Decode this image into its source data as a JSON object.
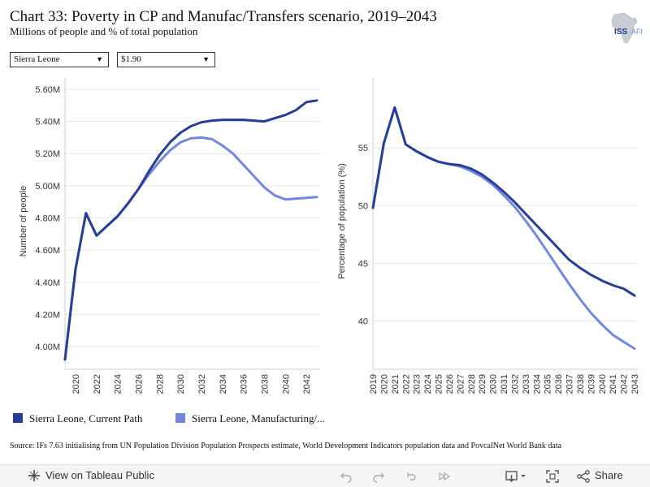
{
  "header": {
    "title": "Chart 33: Poverty in CP and Manufac/Transfers scenario, 2019–2043",
    "subtitle": "Millions of people and % of total population"
  },
  "logo": {
    "text_left": "ISS",
    "text_right": "AFI",
    "icon": "africa-map-icon"
  },
  "filters": {
    "country": {
      "value": "Sierra Leone"
    },
    "threshold": {
      "value": "$1.90"
    }
  },
  "colors": {
    "current_path": "#273d96",
    "manufacturing": "#7388dd",
    "grid": "#e4e4e4"
  },
  "legend": [
    {
      "label": "Sierra Leone, Current Path",
      "color": "#273d96"
    },
    {
      "label": "Sierra Leone, Manufacturing/...",
      "color": "#7388dd"
    }
  ],
  "source": "Source: IFs 7.63 initialising from UN Population Division Population Prospects estimate, World Development Indicators population data and PovcalNet World Bank data",
  "toolbar": {
    "view_label": "View on Tableau Public",
    "share_label": "Share",
    "icons": [
      "tableau-icon",
      "undo-icon",
      "redo-icon",
      "revert-icon",
      "forward-icon",
      "download-icon",
      "fullscreen-icon",
      "share-icon"
    ]
  },
  "chart_data": [
    {
      "type": "line",
      "title": "",
      "xlabel": "",
      "ylabel": "Number of people",
      "x": [
        2019,
        2020,
        2021,
        2022,
        2023,
        2024,
        2025,
        2026,
        2027,
        2028,
        2029,
        2030,
        2031,
        2032,
        2033,
        2034,
        2035,
        2036,
        2037,
        2038,
        2039,
        2040,
        2041,
        2042,
        2043
      ],
      "xticks": [
        "2020",
        "2022",
        "2024",
        "2026",
        "2028",
        "2030",
        "2032",
        "2034",
        "2036",
        "2038",
        "2040",
        "2042"
      ],
      "yticks": [
        "4.00M",
        "4.20M",
        "4.40M",
        "4.60M",
        "4.80M",
        "5.00M",
        "5.20M",
        "5.40M",
        "5.60M"
      ],
      "ylim": [
        3.93,
        5.63
      ],
      "grid": true,
      "series": [
        {
          "name": "Sierra Leone, Current Path",
          "values": [
            3.92,
            4.48,
            4.83,
            4.69,
            4.75,
            4.81,
            4.89,
            4.98,
            5.09,
            5.19,
            5.27,
            5.33,
            5.37,
            5.395,
            5.405,
            5.41,
            5.41,
            5.41,
            5.405,
            5.4,
            5.42,
            5.44,
            5.47,
            5.52,
            5.53
          ]
        },
        {
          "name": "Sierra Leone, Manufacturing/...",
          "values": [
            3.92,
            4.48,
            4.83,
            4.69,
            4.75,
            4.81,
            4.89,
            4.98,
            5.07,
            5.15,
            5.22,
            5.27,
            5.295,
            5.3,
            5.29,
            5.25,
            5.2,
            5.13,
            5.06,
            4.99,
            4.94,
            4.915,
            4.92,
            4.925,
            4.93
          ]
        }
      ]
    },
    {
      "type": "line",
      "title": "",
      "xlabel": "",
      "ylabel": "Percentage of population (%)",
      "x": [
        2019,
        2020,
        2021,
        2022,
        2023,
        2024,
        2025,
        2026,
        2027,
        2028,
        2029,
        2030,
        2031,
        2032,
        2033,
        2034,
        2035,
        2036,
        2037,
        2038,
        2039,
        2040,
        2041,
        2042,
        2043
      ],
      "xticks": [
        "2019",
        "2020",
        "2021",
        "2022",
        "2023",
        "2024",
        "2025",
        "2026",
        "2027",
        "2028",
        "2029",
        "2030",
        "2031",
        "2032",
        "2033",
        "2034",
        "2035",
        "2036",
        "2037",
        "2038",
        "2039",
        "2040",
        "2041",
        "2042",
        "2043"
      ],
      "yticks": [
        "40",
        "45",
        "50",
        "55"
      ],
      "ylim": [
        36.8,
        60.5
      ],
      "grid": true,
      "series": [
        {
          "name": "Sierra Leone, Current Path",
          "values": [
            49.8,
            55.4,
            58.5,
            55.3,
            54.7,
            54.2,
            53.8,
            53.6,
            53.5,
            53.2,
            52.7,
            52.0,
            51.2,
            50.3,
            49.3,
            48.3,
            47.3,
            46.3,
            45.3,
            44.6,
            44.0,
            43.5,
            43.1,
            42.8,
            42.2
          ]
        },
        {
          "name": "Sierra Leone, Manufacturing/...",
          "values": [
            49.8,
            55.4,
            58.5,
            55.3,
            54.7,
            54.2,
            53.8,
            53.6,
            53.4,
            53.0,
            52.5,
            51.8,
            50.9,
            49.9,
            48.7,
            47.4,
            46.0,
            44.6,
            43.2,
            41.9,
            40.7,
            39.7,
            38.8,
            38.2,
            37.6
          ]
        }
      ]
    }
  ]
}
